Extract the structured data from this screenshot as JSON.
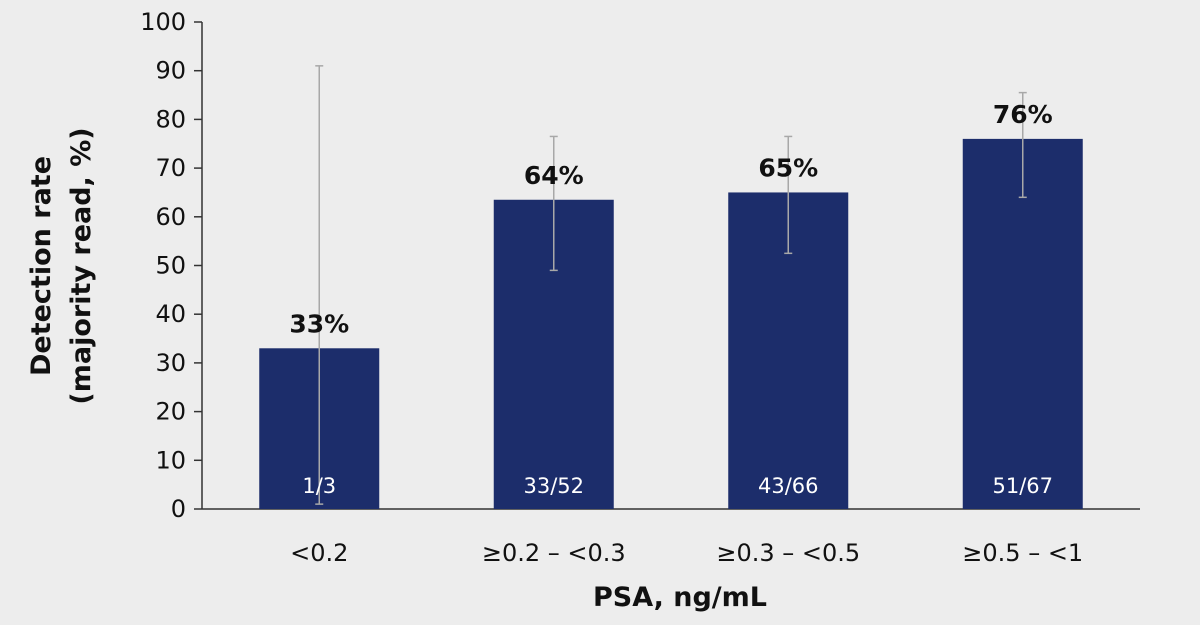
{
  "chart_data": {
    "type": "bar",
    "title": "",
    "xlabel": "PSA, ng/mL",
    "ylabel_line1": "Detection rate",
    "ylabel_line2": "(majority read, %)",
    "ylim": [
      0,
      100
    ],
    "yticks": [
      0,
      10,
      20,
      30,
      40,
      50,
      60,
      70,
      80,
      90,
      100
    ],
    "grid": false,
    "legend": "none",
    "categories": [
      "<0.2",
      "≥0.2 – <0.3",
      "≥0.3 – <0.5",
      "≥0.5 – <1"
    ],
    "values": [
      33,
      63.5,
      65,
      76
    ],
    "value_labels": [
      "33%",
      "64%",
      "65%",
      "76%"
    ],
    "count_labels": [
      "1/3",
      "33/52",
      "43/66",
      "51/67"
    ],
    "error_low": [
      1,
      49,
      52.5,
      64
    ],
    "error_high": [
      91,
      76.5,
      76.5,
      85.5
    ],
    "colors": {
      "bar": "#1c2d6b",
      "error_bar": "#a8a8a8",
      "axis": "#333333",
      "background": "#ededed"
    }
  }
}
